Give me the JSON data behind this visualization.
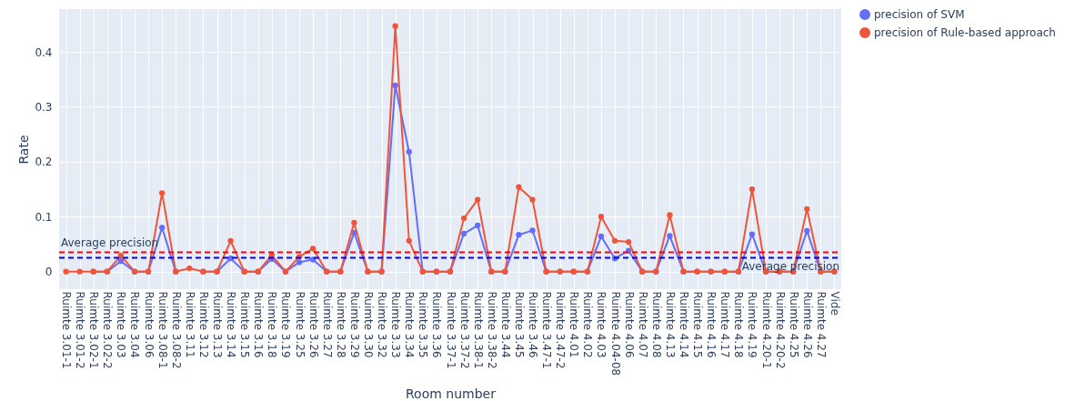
{
  "chart_data": {
    "type": "line",
    "xlabel": "Room number",
    "ylabel": "Rate",
    "categories": [
      "Ruimte 3.01-1",
      "Ruimte 3.01-2",
      "Ruimte 3.02-1",
      "Ruimte 3.02-2",
      "Ruimte 3.03",
      "Ruimte 3.04",
      "Ruimte 3.06",
      "Ruimte 3.08-1",
      "Ruimte 3.08-2",
      "Ruimte 3.11",
      "Ruimte 3.12",
      "Ruimte 3.13",
      "Ruimte 3.14",
      "Ruimte 3.15",
      "Ruimte 3.16",
      "Ruimte 3.18",
      "Ruimte 3.19",
      "Ruimte 3.25",
      "Ruimte 3.26",
      "Ruimte 3.27",
      "Ruimte 3.28",
      "Ruimte 3.29",
      "Ruimte 3.30",
      "Ruimte 3.32",
      "Ruimte 3.33",
      "Ruimte 3.34",
      "Ruimte 3.35",
      "Ruimte 3.36",
      "Ruimte 3.37-1",
      "Ruimte 3.37-2",
      "Ruimte 3.38-1",
      "Ruimte 3.38-2",
      "Ruimte 3.44",
      "Ruimte 3.45",
      "Ruimte 3.46",
      "Ruimte 3.47-1",
      "Ruimte 3.47-2",
      "Ruimte 4.01",
      "Ruimte 4.02",
      "Ruimte 4.03",
      "Ruimte 4.04-08",
      "Ruimte 4.06",
      "Ruimte 4.07",
      "Ruimte 4.08",
      "Ruimte 4.13",
      "Ruimte 4.14",
      "Ruimte 4.15",
      "Ruimte 4.16",
      "Ruimte 4.17",
      "Ruimte 4.18",
      "Ruimte 4.19",
      "Ruimte 4.20-1",
      "Ruimte 4.20-2",
      "Ruimte 4.25",
      "Ruimte 4.26",
      "Ruimte 4.27",
      "Vide"
    ],
    "series": [
      {
        "name": "precision of SVM",
        "color": "#636efa",
        "values": [
          null,
          null,
          0,
          0,
          0.019,
          0,
          0,
          0.08,
          0,
          null,
          0,
          0,
          0.024,
          0,
          0,
          0.023,
          0,
          0.017,
          0.022,
          0,
          0,
          0.071,
          0,
          0,
          0.339,
          0.218,
          0,
          0,
          0,
          0.069,
          0.084,
          0,
          0,
          0.067,
          0.075,
          0,
          0,
          0,
          0,
          0.064,
          0.024,
          0.038,
          0,
          0,
          0.065,
          0,
          0,
          0,
          0,
          0,
          0.068,
          0,
          0,
          0,
          0.074,
          0,
          0
        ]
      },
      {
        "name": "precision of Rule-based approach",
        "color": "#ef553b",
        "values": [
          0,
          0,
          0,
          0,
          0.029,
          0,
          0,
          0.143,
          0,
          0.006,
          0,
          0,
          0.056,
          0,
          0,
          0.03,
          0,
          0.027,
          0.042,
          0,
          0,
          0.089,
          0,
          0,
          0.447,
          0.056,
          0,
          0,
          0,
          0.097,
          0.131,
          0,
          0,
          0.154,
          0.131,
          0,
          0,
          0,
          0,
          0.1,
          0.056,
          0.054,
          0,
          0,
          0.103,
          0,
          0,
          0,
          0,
          0,
          0.15,
          0,
          0,
          0,
          0.114,
          0,
          0
        ]
      }
    ],
    "ref_lines": [
      {
        "axis": "y",
        "value": 0.035,
        "label": "Average precision",
        "color": "#ff0000",
        "line_style": "dashed"
      },
      {
        "axis": "y",
        "value": 0.025,
        "label": "Average precision",
        "color": "#0000ff",
        "line_style": "dashed"
      }
    ],
    "ylim": [
      -0.032,
      0.478
    ],
    "yticks": [
      0,
      0.1,
      0.2,
      0.3,
      0.4
    ],
    "grid": true,
    "legend": "top right",
    "marker": "circle",
    "line_style": "solid"
  }
}
